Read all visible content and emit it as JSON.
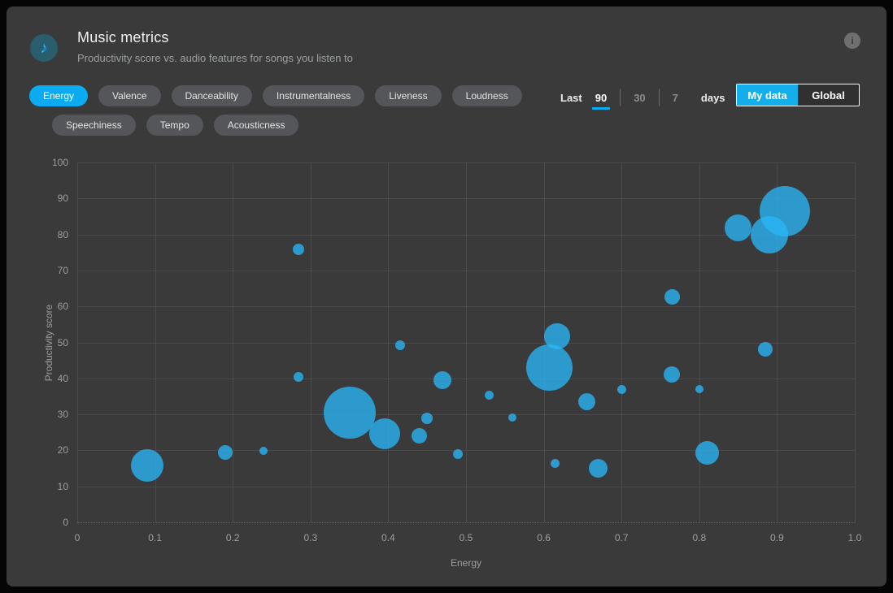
{
  "header": {
    "title": "Music metrics",
    "subtitle": "Productivity score vs. audio features for songs you listen to",
    "icon": "music-note-icon",
    "icon_glyph": "♪",
    "info_glyph": "i"
  },
  "filters": [
    {
      "label": "Energy",
      "active": true,
      "row": 1
    },
    {
      "label": "Valence",
      "active": false,
      "row": 1
    },
    {
      "label": "Danceability",
      "active": false,
      "row": 1
    },
    {
      "label": "Instrumentalness",
      "active": false,
      "row": 1
    },
    {
      "label": "Liveness",
      "active": false,
      "row": 1
    },
    {
      "label": "Loudness",
      "active": false,
      "row": 1
    },
    {
      "label": "Speechiness",
      "active": false,
      "row": 2
    },
    {
      "label": "Tempo",
      "active": false,
      "row": 2
    },
    {
      "label": "Acousticness",
      "active": false,
      "row": 2
    }
  ],
  "time_range": {
    "prefix": "Last",
    "options": [
      "90",
      "30",
      "7"
    ],
    "selected": "90",
    "suffix": "days"
  },
  "scope_toggle": {
    "options": [
      "My data",
      "Global"
    ],
    "selected": "My data"
  },
  "colors": {
    "accent": "#0aabf0",
    "bubble": "rgba(41,182,246,0.78)",
    "panel_bg": "#3a3a3a",
    "grid": "#4a4a4a",
    "tick_text": "#9e9e9e"
  },
  "chart_data": {
    "type": "scatter",
    "variant": "bubble",
    "xlabel": "Energy",
    "ylabel": "Productivity score",
    "xlim": [
      0,
      1.0
    ],
    "ylim": [
      0,
      100
    ],
    "xticks": [
      "0",
      "0.1",
      "0.2",
      "0.3",
      "0.4",
      "0.5",
      "0.6",
      "0.7",
      "0.8",
      "0.9",
      "1.0"
    ],
    "yticks": [
      "0",
      "10",
      "20",
      "30",
      "40",
      "50",
      "60",
      "70",
      "80",
      "90",
      "100"
    ],
    "grid": true,
    "legend": false,
    "points": [
      {
        "x": 0.09,
        "y": 15.7,
        "r": 20
      },
      {
        "x": 0.19,
        "y": 19.4,
        "r": 9
      },
      {
        "x": 0.24,
        "y": 19.8,
        "r": 5
      },
      {
        "x": 0.285,
        "y": 40.5,
        "r": 6
      },
      {
        "x": 0.285,
        "y": 75.8,
        "r": 7
      },
      {
        "x": 0.35,
        "y": 30.5,
        "r": 32
      },
      {
        "x": 0.395,
        "y": 24.5,
        "r": 19
      },
      {
        "x": 0.415,
        "y": 49.2,
        "r": 6
      },
      {
        "x": 0.44,
        "y": 24.0,
        "r": 9.5
      },
      {
        "x": 0.45,
        "y": 29.0,
        "r": 7
      },
      {
        "x": 0.47,
        "y": 39.5,
        "r": 11
      },
      {
        "x": 0.49,
        "y": 19.0,
        "r": 6
      },
      {
        "x": 0.53,
        "y": 35.3,
        "r": 5.5
      },
      {
        "x": 0.56,
        "y": 29.2,
        "r": 5
      },
      {
        "x": 0.607,
        "y": 43.0,
        "r": 28.5
      },
      {
        "x": 0.617,
        "y": 51.7,
        "r": 15.7
      },
      {
        "x": 0.615,
        "y": 16.3,
        "r": 5.5
      },
      {
        "x": 0.655,
        "y": 33.5,
        "r": 10.5
      },
      {
        "x": 0.67,
        "y": 15.0,
        "r": 11.5
      },
      {
        "x": 0.7,
        "y": 37.0,
        "r": 5.5
      },
      {
        "x": 0.765,
        "y": 62.6,
        "r": 9.5
      },
      {
        "x": 0.765,
        "y": 41.0,
        "r": 10
      },
      {
        "x": 0.8,
        "y": 37.0,
        "r": 5
      },
      {
        "x": 0.81,
        "y": 19.3,
        "r": 14.5
      },
      {
        "x": 0.85,
        "y": 81.8,
        "r": 16.5
      },
      {
        "x": 0.885,
        "y": 48.0,
        "r": 9
      },
      {
        "x": 0.89,
        "y": 80.0,
        "r": 23
      },
      {
        "x": 0.91,
        "y": 86.5,
        "r": 31
      }
    ]
  }
}
